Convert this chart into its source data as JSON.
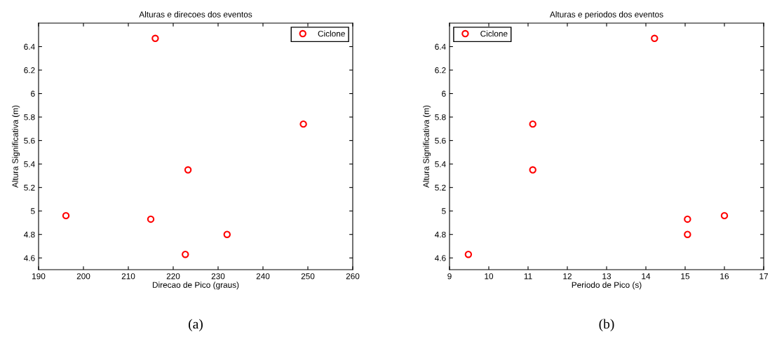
{
  "chart_data": [
    {
      "type": "scatter",
      "title": "Alturas e direcoes dos eventos",
      "xlabel": "Direcao de Pico (graus)",
      "ylabel": "Altura Significativa (m)",
      "annotations": [
        "(a)"
      ],
      "x": [
        216,
        249,
        223.3,
        196.1,
        215,
        232,
        222.7
      ],
      "series": [
        {
          "name": "Ciclone",
          "color": "#ff0000",
          "values": [
            6.47,
            5.74,
            5.35,
            4.96,
            4.93,
            4.8,
            4.63
          ]
        }
      ],
      "xlim": [
        190,
        260
      ],
      "xticks": [
        190,
        200,
        210,
        220,
        230,
        240,
        250,
        260
      ],
      "ylim": [
        4.5,
        6.6
      ],
      "yticks": [
        4.6,
        4.8,
        5,
        5.2,
        5.4,
        5.6,
        5.8,
        6,
        6.2,
        6.4
      ],
      "marker": "circle",
      "grid": false,
      "legend": "top right"
    },
    {
      "type": "scatter",
      "title": "Alturas e periodos dos eventos",
      "xlabel": "Periodo de Pico (s)",
      "ylabel": "Altura Significativa (m)",
      "annotations": [
        "(b)"
      ],
      "x": [
        14.22,
        11.12,
        11.12,
        16.0,
        15.06,
        15.06,
        9.48
      ],
      "series": [
        {
          "name": "Ciclone",
          "color": "#ff0000",
          "values": [
            6.47,
            5.74,
            5.35,
            4.96,
            4.93,
            4.8,
            4.63
          ]
        }
      ],
      "xlim": [
        9,
        17
      ],
      "xticks": [
        9,
        10,
        11,
        12,
        13,
        14,
        15,
        16,
        17
      ],
      "ylim": [
        4.5,
        6.6
      ],
      "yticks": [
        4.6,
        4.8,
        5,
        5.2,
        5.4,
        5.6,
        5.8,
        6,
        6.2,
        6.4
      ],
      "marker": "circle",
      "grid": false,
      "legend": "top left"
    }
  ]
}
